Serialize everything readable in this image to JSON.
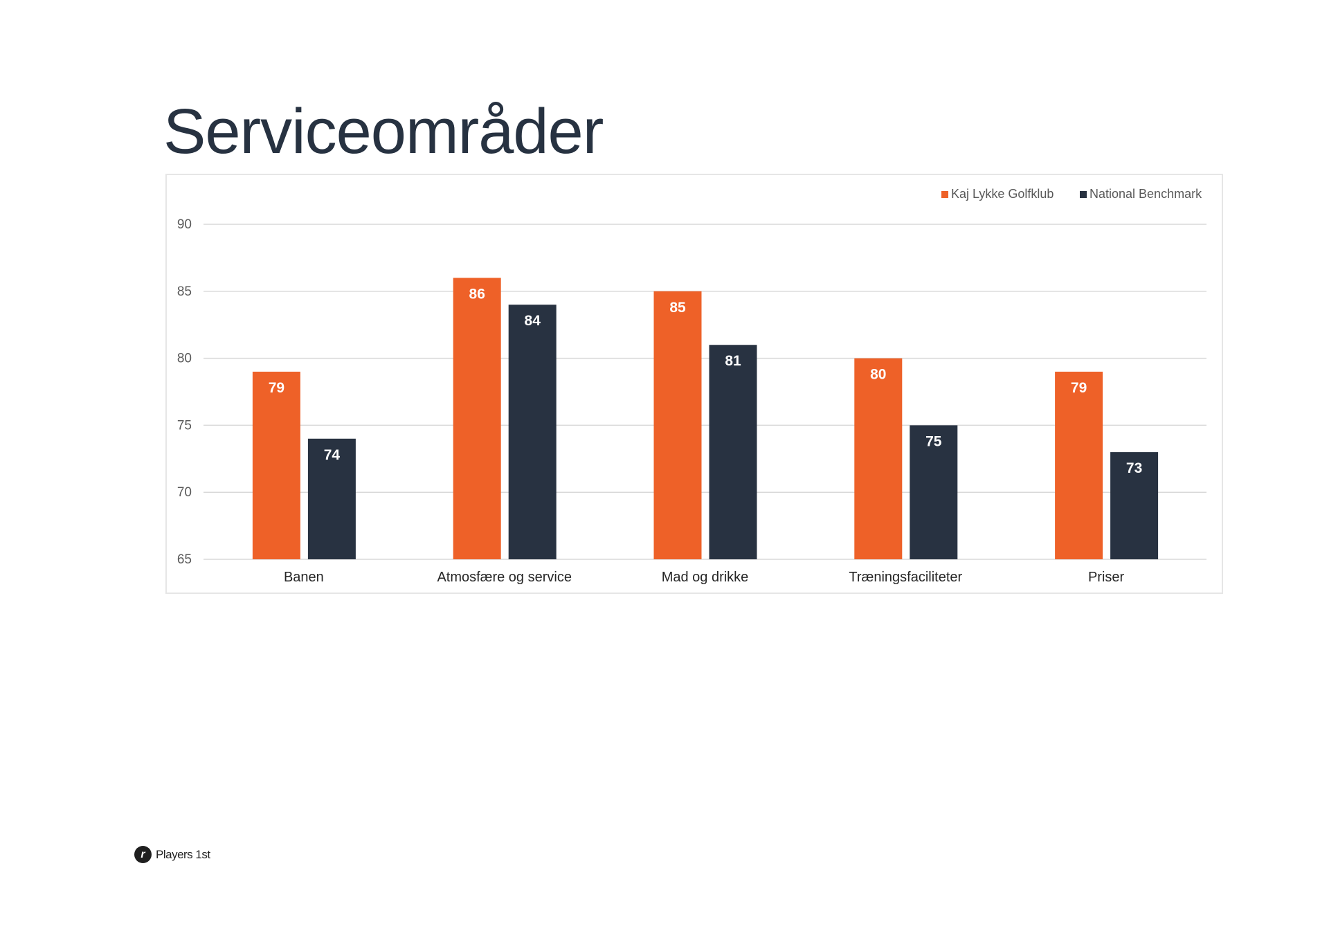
{
  "page": {
    "title": "Serviceområder",
    "logo_text": "Players 1st",
    "logo_mark": "r"
  },
  "chart_data": {
    "type": "bar",
    "title": "Serviceområder",
    "categories": [
      "Banen",
      "Atmosfære og service",
      "Mad og drikke",
      "Træningsfaciliteter",
      "Priser"
    ],
    "series": [
      {
        "name": "Kaj Lykke Golfklub",
        "color": "#ee6128",
        "values": [
          79,
          86,
          85,
          80,
          79
        ]
      },
      {
        "name": "National Benchmark",
        "color": "#283241",
        "values": [
          74,
          84,
          81,
          75,
          73
        ]
      }
    ],
    "yticks": [
      65,
      70,
      75,
      80,
      85,
      90
    ],
    "ylim": [
      65,
      90
    ],
    "grid": true,
    "legend_position": "top-right",
    "xlabel": "",
    "ylabel": ""
  }
}
